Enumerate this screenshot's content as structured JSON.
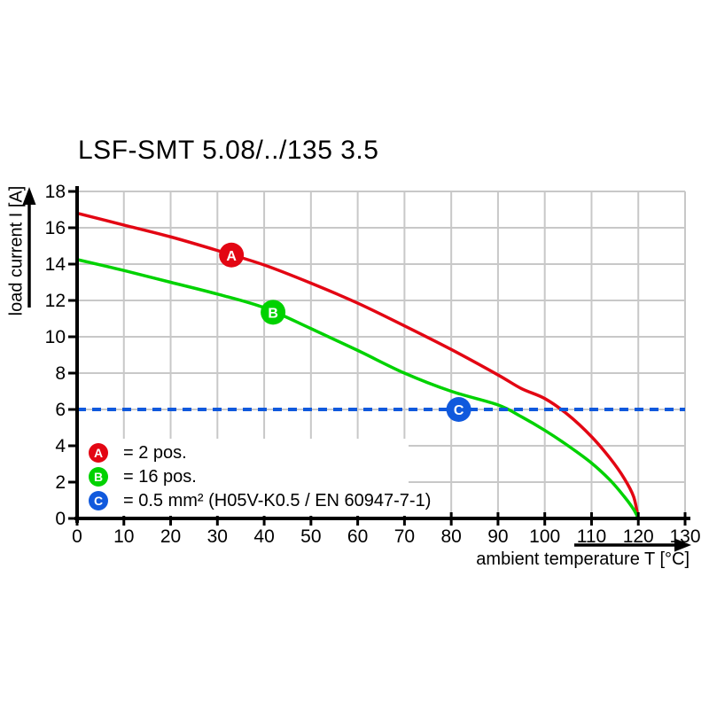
{
  "title": "LSF-SMT 5.08/../135 3.5",
  "colors": {
    "series_a_red": "#e30613",
    "series_b_green": "#00d200",
    "series_c_blue": "#1059dd",
    "grid": "#c8c8c8",
    "axis": "#000000",
    "background": "#ffffff"
  },
  "chart_data": {
    "type": "line",
    "title": "LSF-SMT 5.08/../135 3.5",
    "xlabel": "ambient temperature T [°C]",
    "ylabel": "load current I [A]",
    "xlim": [
      0,
      130
    ],
    "ylim": [
      0,
      18
    ],
    "x_ticks": [
      0,
      10,
      20,
      30,
      40,
      50,
      60,
      70,
      80,
      90,
      100,
      110,
      120,
      130
    ],
    "y_ticks": [
      0,
      2,
      4,
      6,
      8,
      10,
      12,
      14,
      16,
      18
    ],
    "grid": true,
    "series": [
      {
        "name": "A",
        "label": "2 pos.",
        "color": "#e30613",
        "style": "solid",
        "x": [
          0,
          10,
          20,
          30,
          40,
          50,
          60,
          70,
          80,
          90,
          95,
          100,
          105,
          110,
          114,
          117,
          119,
          120
        ],
        "y": [
          16.8,
          16.15,
          15.5,
          14.75,
          13.95,
          12.95,
          11.85,
          10.6,
          9.3,
          7.9,
          7.15,
          6.6,
          5.7,
          4.5,
          3.3,
          2.2,
          1.2,
          0
        ],
        "marker": {
          "letter": "A",
          "x": 33,
          "y": 14.5
        }
      },
      {
        "name": "B",
        "label": "16 pos.",
        "color": "#00d200",
        "style": "solid",
        "x": [
          0,
          10,
          20,
          30,
          40,
          50,
          60,
          70,
          80,
          90,
          95,
          100,
          105,
          110,
          114,
          117,
          119,
          120
        ],
        "y": [
          14.25,
          13.65,
          13.0,
          12.35,
          11.6,
          10.45,
          9.25,
          8.0,
          7.0,
          6.25,
          5.6,
          4.85,
          4.0,
          3.05,
          2.1,
          1.2,
          0.5,
          0
        ],
        "marker": {
          "letter": "B",
          "x": 41.9,
          "y": 11.35
        }
      },
      {
        "name": "C",
        "label": "0.5 mm² (H05V-K0.5 / EN 60947-7-1)",
        "color": "#1059dd",
        "style": "dashed",
        "hline": 6,
        "marker": {
          "letter": "C",
          "x": 81.6,
          "y": 6
        }
      }
    ],
    "legend": {
      "position": "bottom-left",
      "items": [
        {
          "letter": "A",
          "color": "#e30613",
          "text": "= 2 pos."
        },
        {
          "letter": "B",
          "color": "#00d200",
          "text": "= 16 pos."
        },
        {
          "letter": "C",
          "color": "#1059dd",
          "text": "= 0.5 mm² (H05V-K0.5 / EN 60947-7-1)"
        }
      ]
    }
  }
}
